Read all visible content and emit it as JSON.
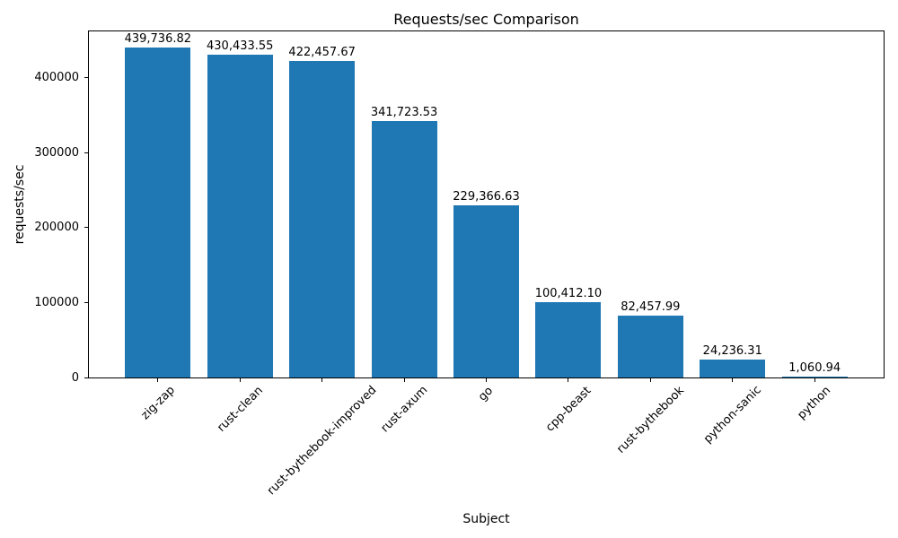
{
  "figure": {
    "title": "Requests/sec Comparison",
    "xlabel": "Subject",
    "ylabel": "requests/sec"
  },
  "chart_data": {
    "type": "bar",
    "title": "Requests/sec Comparison",
    "xlabel": "Subject",
    "ylabel": "requests/sec",
    "categories": [
      "zig-zap",
      "rust-clean",
      "rust-bythebook-improved",
      "rust-axum",
      "go",
      "cpp-beast",
      "rust-bythebook",
      "python-sanic",
      "python"
    ],
    "values": [
      439736.82,
      430433.55,
      422457.67,
      341723.53,
      229366.63,
      100412.1,
      82457.99,
      24236.31,
      1060.94
    ],
    "value_labels": [
      "439,736.82",
      "430,433.55",
      "422,457.67",
      "341,723.53",
      "229,366.63",
      "100,412.10",
      "82,457.99",
      "24,236.31",
      "1,060.94"
    ],
    "yticks": [
      0,
      100000,
      200000,
      300000,
      400000
    ],
    "ytick_labels": [
      "0",
      "100000",
      "200000",
      "300000",
      "400000"
    ],
    "ylim": [
      0,
      461724
    ],
    "bar_color": "#1f77b4",
    "bar_width_fraction": 0.8,
    "x_margin": 0.05,
    "tick_label_rotation_deg": 45,
    "grid": false,
    "legend": null
  }
}
